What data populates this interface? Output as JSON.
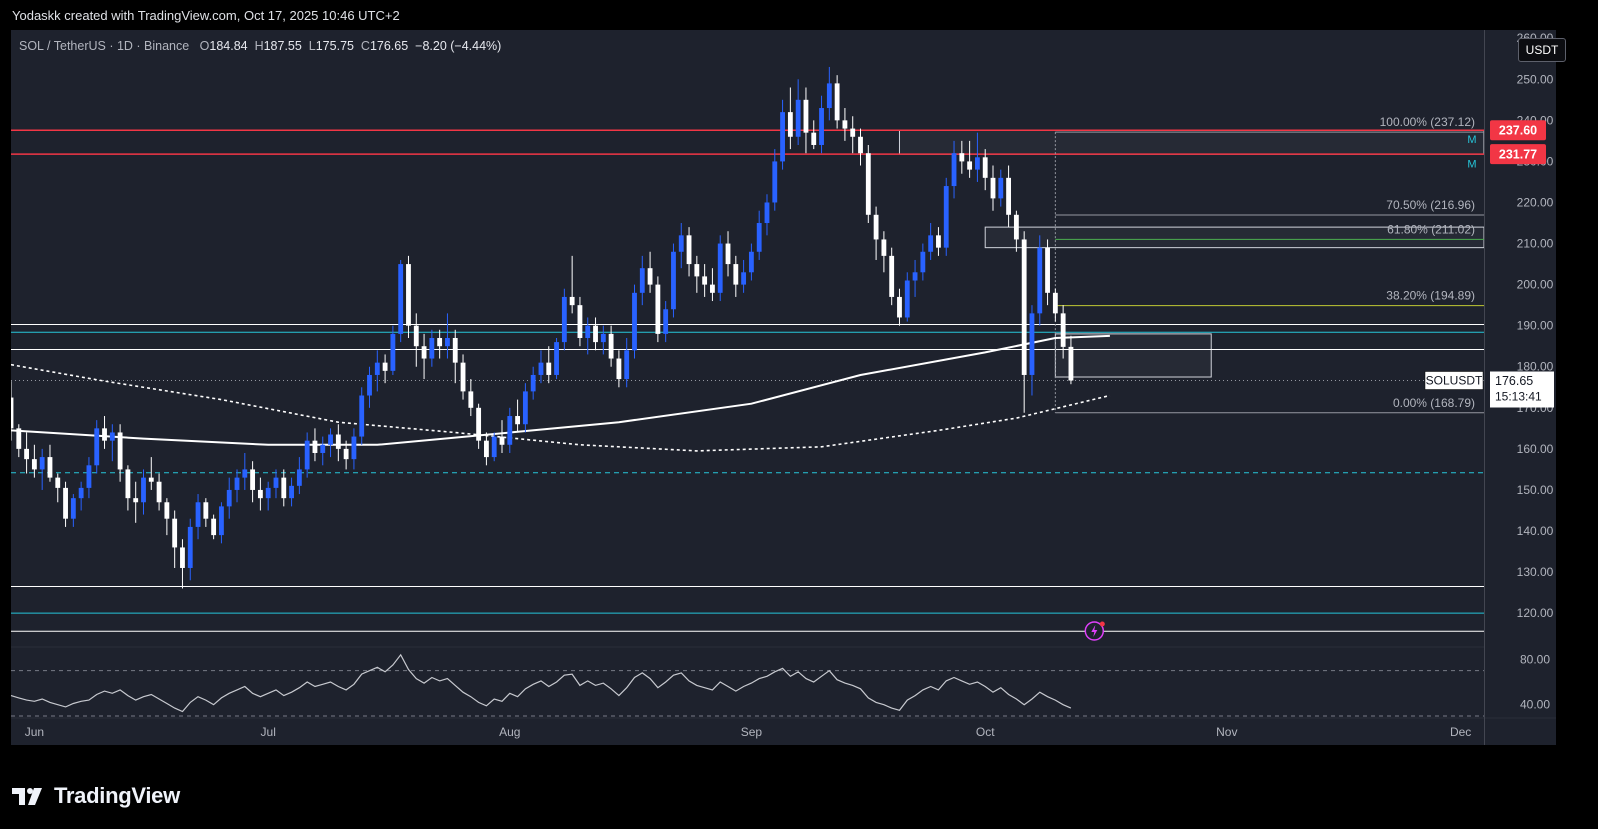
{
  "header": {
    "attribution": "Yodaskk created with TradingView.com, Oct 17, 2025 10:46 UTC+2"
  },
  "legend": {
    "symbol": "SOL / TetherUS · 1D · Binance",
    "o_label": "O",
    "o": "184.84",
    "h_label": "H",
    "h": "187.55",
    "l_label": "L",
    "l": "175.75",
    "c_label": "C",
    "c": "176.65",
    "change": "−8.20 (−4.44%)"
  },
  "currency_button": "USDT",
  "brand": {
    "name": "TradingView"
  },
  "colors": {
    "background": "#1e222d",
    "candle_up": "#2962ff",
    "candle_down": "#ffffff",
    "resistance": "#f23645",
    "support": "#ffffff",
    "cyan": "#26c6da",
    "fib_green": "#4caf50",
    "fib_lime": "#c0ca33"
  },
  "chart_data": {
    "type": "candlestick",
    "symbol": "SOLUSDT",
    "interval": "1D",
    "y_axis": {
      "ylim": [
        112,
        262
      ],
      "ticks": [
        260,
        250,
        240,
        230,
        220,
        210,
        200,
        190,
        180,
        170,
        160,
        150,
        140,
        130,
        120
      ],
      "tick_labels": [
        "260.00",
        "250.00",
        "240.00",
        "230.00",
        "220.00",
        "210.00",
        "200.00",
        "190.00",
        "180.00",
        "170.00",
        "160.00",
        "150.00",
        "140.00",
        "130.00",
        "120.00"
      ]
    },
    "x_axis": {
      "labels": [
        "Jun",
        "Jul",
        "Aug",
        "Sep",
        "Oct",
        "Nov",
        "Dec"
      ],
      "label_dates": [
        "2025-06-01",
        "2025-07-01",
        "2025-08-01",
        "2025-09-01",
        "2025-10-01",
        "2025-11-01",
        "2025-12-01"
      ],
      "range": [
        "2025-05-29",
        "2025-12-04"
      ]
    },
    "price_labels": [
      {
        "value": 237.6,
        "text": "237.60",
        "color": "#f23645"
      },
      {
        "value": 231.77,
        "text": "231.77",
        "color": "#f23645"
      }
    ],
    "last_price": {
      "symbol": "SOLUSDT",
      "value": 176.65,
      "text": "176.65",
      "countdown": "15:13:41"
    },
    "alert_markers": [
      {
        "value": 235.5,
        "text": "M"
      },
      {
        "value": 229.5,
        "text": "M"
      }
    ],
    "horizontal_levels": [
      {
        "value": 237.6,
        "color": "#f23645",
        "style": "solid"
      },
      {
        "value": 231.77,
        "color": "#f23645",
        "style": "solid"
      },
      {
        "value": 190.3,
        "color": "#ffffff",
        "style": "solid"
      },
      {
        "value": 188.4,
        "color": "#26c6da",
        "style": "solid"
      },
      {
        "value": 184.2,
        "color": "#ffffff",
        "style": "solid"
      },
      {
        "value": 176.65,
        "color": "#9598a1",
        "style": "dotted"
      },
      {
        "value": 154.2,
        "color": "#26c6da",
        "style": "dashed"
      },
      {
        "value": 126.5,
        "color": "#ffffff",
        "style": "solid"
      },
      {
        "value": 120.0,
        "color": "#26c6da",
        "style": "solid"
      },
      {
        "value": 115.6,
        "color": "#ffffff",
        "style": "solid"
      }
    ],
    "fibonacci": {
      "start_date": "2025-10-10",
      "levels": [
        {
          "value": 237.12,
          "label": "100.00% (237.12)",
          "color": "#9598a1"
        },
        {
          "value": 216.96,
          "label": "70.50% (216.96)",
          "color": "#9598a1"
        },
        {
          "value": 211.02,
          "label": "61.80% (211.02)",
          "color": "#4caf50"
        },
        {
          "value": 194.89,
          "label": "38.20% (194.89)",
          "color": "#c0ca33"
        },
        {
          "value": 168.79,
          "label": "0.00% (168.79)",
          "color": "#9598a1"
        }
      ]
    },
    "zones": [
      {
        "from_date": "2025-09-20",
        "to_date": "2025-12-04",
        "low": 231.77,
        "high": 237.6
      },
      {
        "from_date": "2025-10-01",
        "to_date": "2025-12-04",
        "low": 209.0,
        "high": 214.0
      },
      {
        "from_date": "2025-10-10",
        "to_date": "2025-10-30",
        "low": 177.5,
        "high": 188.0
      }
    ],
    "moving_averages": [
      {
        "name": "MA long",
        "style": "solid",
        "points": [
          [
            "2025-05-29",
            164.5
          ],
          [
            "2025-06-15",
            162.5
          ],
          [
            "2025-07-01",
            161.0
          ],
          [
            "2025-07-15",
            161.0
          ],
          [
            "2025-08-01",
            164.0
          ],
          [
            "2025-08-15",
            166.5
          ],
          [
            "2025-09-01",
            171.0
          ],
          [
            "2025-09-15",
            178.0
          ],
          [
            "2025-10-01",
            183.5
          ],
          [
            "2025-10-10",
            187.0
          ],
          [
            "2025-10-17",
            187.5
          ]
        ]
      },
      {
        "name": "MA short",
        "style": "dashed",
        "points": [
          [
            "2025-05-29",
            180.5
          ],
          [
            "2025-06-10",
            176.5
          ],
          [
            "2025-06-25",
            172.0
          ],
          [
            "2025-07-10",
            166.5
          ],
          [
            "2025-07-25",
            164.0
          ],
          [
            "2025-08-10",
            161.0
          ],
          [
            "2025-08-25",
            159.5
          ],
          [
            "2025-09-10",
            160.5
          ],
          [
            "2025-09-25",
            164.5
          ],
          [
            "2025-10-05",
            167.5
          ],
          [
            "2025-10-17",
            173.0
          ]
        ]
      }
    ],
    "candles_start": "2025-05-29",
    "candles": [
      [
        172.5,
        176.5,
        162,
        165
      ],
      [
        165,
        166,
        158,
        160
      ],
      [
        160,
        164,
        154,
        157.5
      ],
      [
        157.5,
        161,
        153,
        155
      ],
      [
        155,
        160,
        150,
        158
      ],
      [
        158,
        161,
        152,
        153
      ],
      [
        153,
        154,
        147,
        150.5
      ],
      [
        150.5,
        152,
        141,
        143
      ],
      [
        143,
        149,
        141,
        148
      ],
      [
        148,
        152,
        145,
        150.5
      ],
      [
        150.5,
        158,
        148,
        156
      ],
      [
        156,
        167,
        154,
        165
      ],
      [
        165,
        168,
        160,
        162
      ],
      [
        162,
        166,
        157,
        164
      ],
      [
        164,
        166,
        152,
        155
      ],
      [
        155,
        156,
        145,
        148
      ],
      [
        148,
        152,
        142,
        147
      ],
      [
        147,
        155,
        144,
        153
      ],
      [
        153,
        158,
        150,
        152
      ],
      [
        152,
        154,
        145,
        147
      ],
      [
        147,
        148,
        139,
        143
      ],
      [
        143,
        145,
        131,
        136
      ],
      [
        136,
        138,
        126,
        131
      ],
      [
        131,
        143,
        128,
        141
      ],
      [
        141,
        149,
        138,
        147
      ],
      [
        147,
        148,
        141,
        143
      ],
      [
        143,
        144,
        138,
        139
      ],
      [
        139,
        147,
        137,
        146
      ],
      [
        146,
        153,
        143,
        150
      ],
      [
        150,
        155,
        147,
        153
      ],
      [
        153,
        159,
        150,
        155
      ],
      [
        155,
        157,
        147,
        150
      ],
      [
        150,
        153,
        145,
        148
      ],
      [
        148,
        152,
        145,
        150.5
      ],
      [
        150.5,
        155,
        148,
        153
      ],
      [
        153,
        155,
        146,
        148
      ],
      [
        148,
        153,
        146,
        151
      ],
      [
        151,
        158,
        149,
        155
      ],
      [
        155,
        164,
        153,
        162
      ],
      [
        162,
        165,
        157,
        159
      ],
      [
        159,
        163,
        156,
        161
      ],
      [
        161,
        165,
        158,
        163.5
      ],
      [
        163.5,
        166,
        157,
        160
      ],
      [
        160,
        162,
        155,
        157.5
      ],
      [
        157.5,
        165,
        155,
        163
      ],
      [
        163,
        175,
        161,
        173
      ],
      [
        173,
        180,
        170,
        178
      ],
      [
        178,
        184,
        174,
        181
      ],
      [
        181,
        183,
        176,
        179
      ],
      [
        179,
        190,
        178,
        188
      ],
      [
        188,
        206,
        186,
        205
      ],
      [
        205,
        207,
        187,
        190
      ],
      [
        190,
        193,
        180,
        185
      ],
      [
        185,
        188,
        177,
        182
      ],
      [
        182,
        189,
        180,
        187
      ],
      [
        187,
        189,
        182,
        185
      ],
      [
        185,
        193,
        182,
        187
      ],
      [
        187,
        189,
        176,
        181
      ],
      [
        181,
        183,
        172,
        174
      ],
      [
        174,
        177,
        168,
        170
      ],
      [
        170,
        171,
        160,
        162
      ],
      [
        162,
        164,
        156,
        158
      ],
      [
        158,
        164,
        157,
        163
      ],
      [
        163,
        167,
        159,
        161
      ],
      [
        161,
        170,
        159,
        168
      ],
      [
        168,
        172,
        164,
        166
      ],
      [
        166,
        176,
        164,
        174
      ],
      [
        174,
        180,
        172,
        178
      ],
      [
        178,
        184,
        176,
        181
      ],
      [
        181,
        185,
        176,
        178
      ],
      [
        178,
        187,
        177,
        186
      ],
      [
        186,
        199,
        184,
        197
      ],
      [
        197,
        207,
        193,
        195
      ],
      [
        195,
        197,
        185,
        187
      ],
      [
        187,
        192,
        183,
        190
      ],
      [
        190,
        192,
        184,
        186
      ],
      [
        186,
        190,
        183,
        188
      ],
      [
        188,
        190,
        180,
        182
      ],
      [
        182,
        184,
        175,
        177
      ],
      [
        177,
        187,
        175,
        184
      ],
      [
        184,
        200,
        182,
        198
      ],
      [
        198,
        207,
        195,
        204
      ],
      [
        204,
        208,
        198,
        200
      ],
      [
        200,
        202,
        186,
        188
      ],
      [
        188,
        196,
        186,
        194
      ],
      [
        194,
        210,
        192,
        208
      ],
      [
        208,
        215,
        204,
        212
      ],
      [
        212,
        214,
        202,
        205
      ],
      [
        205,
        207,
        198,
        202
      ],
      [
        202,
        205,
        197,
        200
      ],
      [
        200,
        204,
        196,
        198
      ],
      [
        198,
        212,
        196,
        210
      ],
      [
        210,
        213,
        202,
        205
      ],
      [
        205,
        207,
        197,
        200
      ],
      [
        200,
        206,
        198,
        203
      ],
      [
        203,
        210,
        201,
        208
      ],
      [
        208,
        218,
        206,
        215
      ],
      [
        215,
        222,
        212,
        220
      ],
      [
        220,
        233,
        218,
        230
      ],
      [
        230,
        245,
        228,
        242
      ],
      [
        242,
        248,
        233,
        236
      ],
      [
        236,
        250,
        234,
        245
      ],
      [
        245,
        248,
        232,
        237
      ],
      [
        237,
        240,
        233,
        234
      ],
      [
        234,
        246,
        232,
        243
      ],
      [
        243,
        253,
        240,
        249
      ],
      [
        249,
        251,
        238,
        240
      ],
      [
        240,
        243,
        235,
        238
      ],
      [
        238,
        241,
        232,
        236
      ],
      [
        236,
        238,
        229,
        232
      ],
      [
        232,
        234,
        215,
        217
      ],
      [
        217,
        219,
        206,
        211
      ],
      [
        211,
        213,
        203,
        207
      ],
      [
        207,
        209,
        195,
        197
      ],
      [
        197,
        199,
        190,
        192
      ],
      [
        192,
        203,
        191,
        201
      ],
      [
        201,
        206,
        197,
        203
      ],
      [
        203,
        210,
        201,
        208
      ],
      [
        208,
        215,
        206,
        212
      ],
      [
        212,
        214,
        207,
        209
      ],
      [
        209,
        226,
        207,
        224
      ],
      [
        224,
        235,
        221,
        232
      ],
      [
        232,
        235,
        227,
        230
      ],
      [
        230,
        235,
        226,
        228
      ],
      [
        228,
        237,
        225,
        231
      ],
      [
        231,
        233,
        223,
        226
      ],
      [
        226,
        229,
        218,
        221
      ],
      [
        221,
        228,
        219,
        226
      ],
      [
        226,
        229,
        214,
        217
      ],
      [
        217,
        218,
        208,
        211
      ],
      [
        211,
        213,
        168.79,
        178
      ],
      [
        178,
        195,
        173,
        193
      ],
      [
        193,
        212,
        190,
        209
      ],
      [
        209,
        211,
        195,
        198
      ],
      [
        198,
        199,
        191,
        193
      ],
      [
        193,
        195,
        182,
        184.84
      ],
      [
        184.84,
        187.55,
        175.75,
        176.65
      ]
    ],
    "rsi": {
      "ticks": [
        80,
        40
      ],
      "tick_labels": [
        "80.00",
        "40.00"
      ],
      "ylim": [
        30,
        90
      ],
      "bands": [
        70,
        30
      ],
      "points": [
        48,
        46,
        44,
        43,
        45,
        42,
        40,
        38,
        41,
        43,
        44,
        49,
        52,
        50,
        53,
        48,
        44,
        47,
        49,
        45,
        41,
        37,
        34,
        42,
        47,
        44,
        40,
        46,
        50,
        53,
        56,
        50,
        47,
        50,
        53,
        48,
        51,
        55,
        60,
        56,
        58,
        60,
        56,
        53,
        58,
        67,
        70,
        73,
        69,
        75,
        84,
        71,
        63,
        59,
        64,
        61,
        63,
        57,
        51,
        47,
        42,
        39,
        45,
        43,
        50,
        47,
        54,
        58,
        61,
        56,
        60,
        66,
        67,
        57,
        61,
        57,
        59,
        54,
        48,
        55,
        64,
        68,
        63,
        55,
        60,
        66,
        68,
        61,
        57,
        55,
        53,
        60,
        56,
        52,
        56,
        59,
        63,
        65,
        69,
        72,
        65,
        69,
        63,
        60,
        65,
        70,
        62,
        59,
        57,
        54,
        46,
        42,
        40,
        37,
        35,
        44,
        48,
        53,
        56,
        53,
        61,
        64,
        61,
        58,
        60,
        56,
        51,
        55,
        49,
        45,
        40,
        45,
        51,
        47,
        44,
        40,
        37
      ]
    }
  }
}
